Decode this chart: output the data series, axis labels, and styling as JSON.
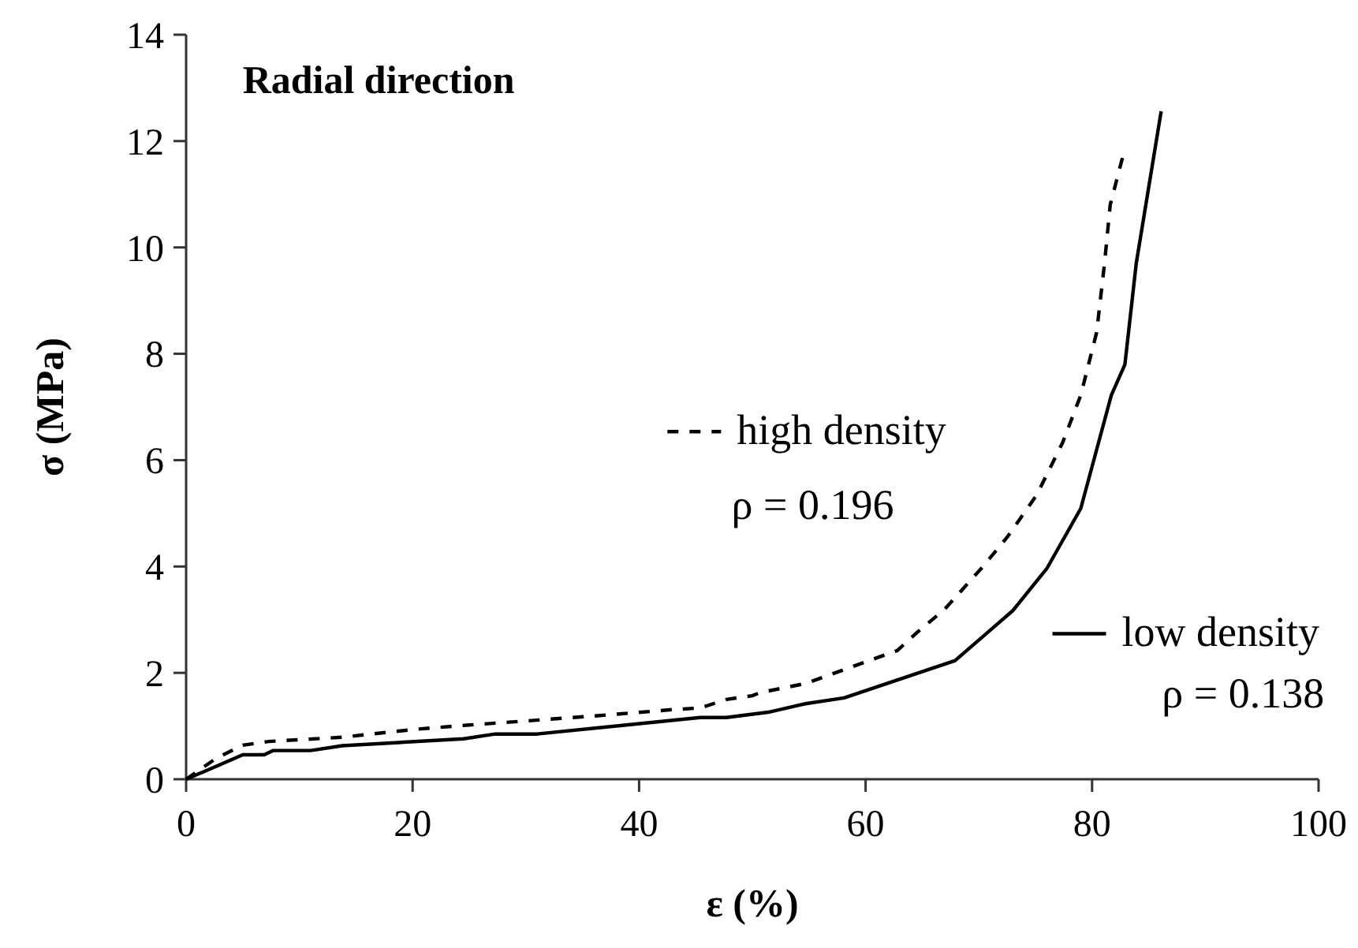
{
  "chart_data": {
    "type": "line",
    "title": "Radial direction",
    "xlabel": "ε (%)",
    "ylabel": "σ (MPa)",
    "xlim": [
      0,
      100
    ],
    "xticks": [
      0,
      20,
      40,
      60,
      80,
      100
    ],
    "ylim": [
      0,
      14
    ],
    "yticks": [
      0,
      2,
      4,
      6,
      8,
      10,
      12,
      14
    ],
    "grid": false,
    "legend": "right",
    "marker": "none",
    "series": [
      {
        "name": "high density",
        "color": "#000000",
        "line_style": "dashed",
        "x": [
          0,
          2.7,
          5,
          7.3,
          13.8,
          20.3,
          25,
          29.6,
          36.1,
          43,
          45.4,
          47.7,
          50,
          50.7,
          54.7,
          57.7,
          62.8,
          64.6,
          67,
          70.2,
          72.5,
          75.1,
          77.4,
          79,
          80.4,
          81.1,
          81.6,
          82.7
        ],
        "values": [
          0,
          0.4,
          0.64,
          0.71,
          0.79,
          0.94,
          1.02,
          1.09,
          1.19,
          1.31,
          1.34,
          1.5,
          1.57,
          1.63,
          1.8,
          2.03,
          2.42,
          2.77,
          3.2,
          3.96,
          4.55,
          5.34,
          6.33,
          7.22,
          8.4,
          9.7,
          10.8,
          11.7
        ]
      },
      {
        "name": "low density",
        "color": "#000000",
        "line_style": "solid",
        "x": [
          0,
          2.2,
          5,
          6.9,
          7.7,
          11,
          13.8,
          24.5,
          27.3,
          31,
          45.4,
          47.7,
          51.4,
          54.7,
          58.1,
          67.9,
          73,
          76,
          79,
          81.7,
          82.9,
          83.9,
          86.1
        ],
        "values": [
          0,
          0.2,
          0.46,
          0.46,
          0.54,
          0.54,
          0.63,
          0.76,
          0.85,
          0.85,
          1.16,
          1.16,
          1.26,
          1.42,
          1.53,
          2.23,
          3.17,
          3.96,
          5.09,
          7.22,
          7.8,
          9.7,
          12.56
        ]
      }
    ],
    "annotations": [
      "ρ = 0.196",
      "ρ = 0.138"
    ]
  }
}
